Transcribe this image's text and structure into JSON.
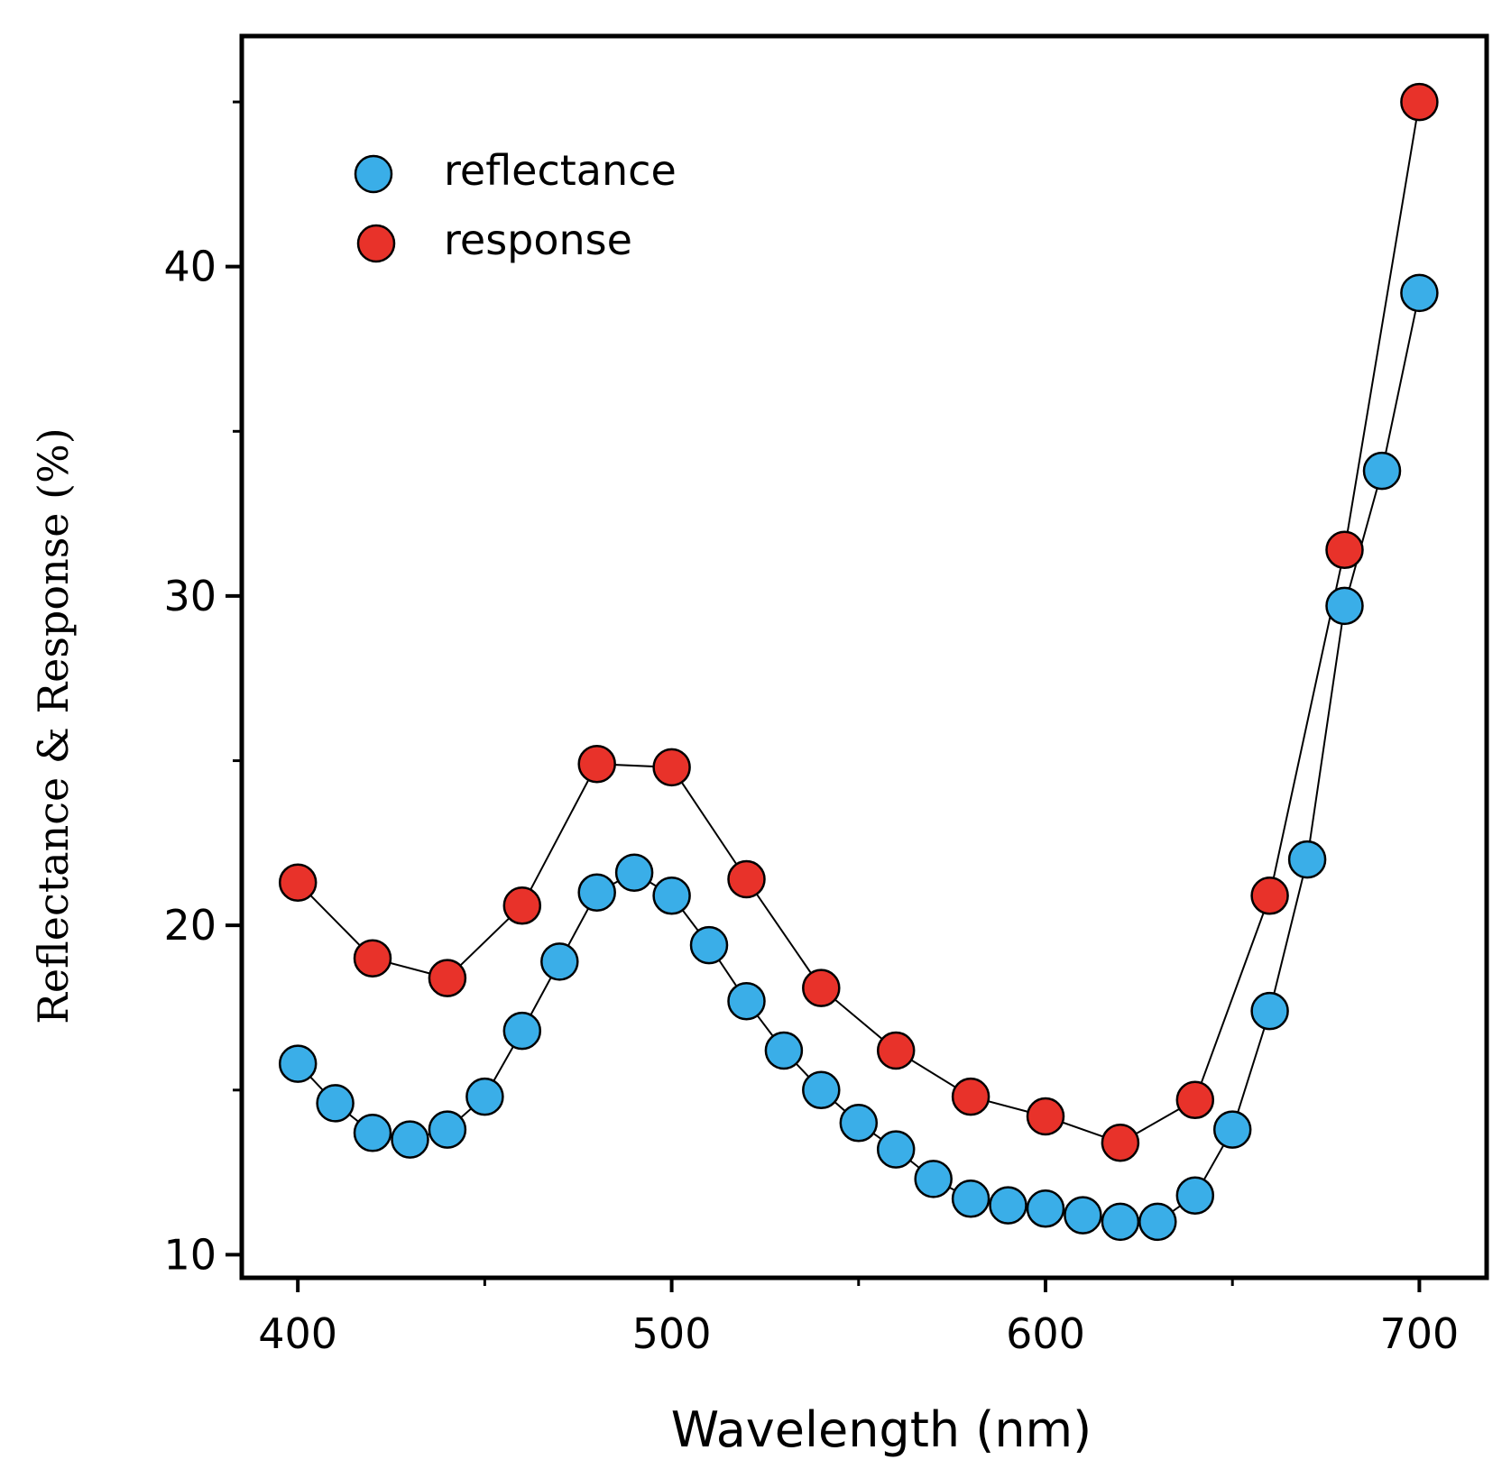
{
  "chart_data": {
    "type": "line",
    "xlabel": "Wavelength (nm)",
    "ylabel": "Reflectance & Response (%)",
    "xlim": [
      385,
      718
    ],
    "ylim": [
      9.3,
      47
    ],
    "x_ticks": [
      400,
      500,
      600,
      700
    ],
    "x_minor_ticks": [
      450,
      550,
      650
    ],
    "y_ticks": [
      10,
      20,
      30,
      40
    ],
    "y_tick_labels": [
      "10",
      "20",
      "30",
      "40"
    ],
    "y_minor_ticks": [
      15,
      25,
      35,
      45
    ],
    "legend_position": "top-left",
    "grid": false,
    "series": [
      {
        "name": "reflectance",
        "color": "#3aaee8",
        "x": [
          400,
          410,
          420,
          430,
          440,
          450,
          460,
          470,
          480,
          490,
          500,
          510,
          520,
          530,
          540,
          550,
          560,
          570,
          580,
          590,
          600,
          610,
          620,
          630,
          640,
          650,
          660,
          670,
          680,
          690,
          700
        ],
        "y": [
          15.8,
          14.6,
          13.7,
          13.5,
          13.8,
          14.8,
          16.8,
          18.9,
          21.0,
          21.6,
          20.9,
          19.4,
          17.7,
          16.2,
          15.0,
          14.0,
          13.2,
          12.3,
          11.7,
          11.5,
          11.4,
          11.2,
          11.0,
          11.0,
          11.8,
          13.8,
          17.4,
          22.0,
          29.7,
          33.8,
          39.2
        ]
      },
      {
        "name": "response",
        "color": "#e8322a",
        "x": [
          400,
          420,
          440,
          460,
          480,
          500,
          520,
          540,
          560,
          580,
          600,
          620,
          640,
          660,
          680,
          700
        ],
        "y": [
          21.3,
          19.0,
          18.4,
          20.6,
          24.9,
          24.8,
          21.4,
          18.1,
          16.2,
          14.8,
          14.2,
          13.4,
          14.7,
          20.9,
          31.4,
          45.0
        ]
      }
    ]
  }
}
